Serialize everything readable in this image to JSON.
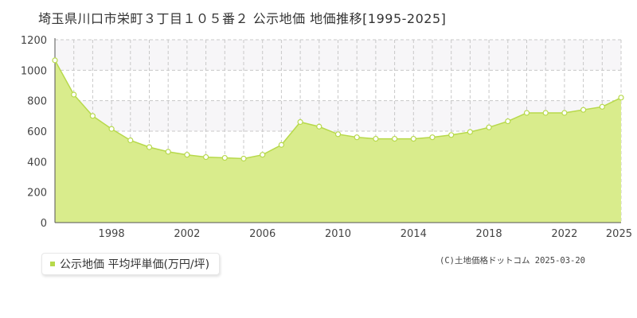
{
  "colors": {
    "fill": "#d9ec8c",
    "line": "#b7d94b",
    "marker_fill": "#ffffff",
    "grid": "#c8c8c8",
    "band": "#f7f6f8"
  },
  "chart_data": {
    "type": "area",
    "title": "埼玉県川口市栄町３丁目１０５番２ 公示地価 地価推移[1995-2025]",
    "xlabel": "",
    "ylabel": "",
    "xlim": [
      1995,
      2025
    ],
    "ylim": [
      0,
      1200
    ],
    "y_ticks": [
      0,
      200,
      400,
      600,
      800,
      1000,
      1200
    ],
    "x_tick_labels": [
      "1998",
      "2002",
      "2006",
      "2010",
      "2014",
      "2018",
      "2022",
      "2025"
    ],
    "grid": true,
    "legend_position": "bottom-left",
    "series": [
      {
        "name": "公示地価 平均坪単価(万円/坪)",
        "x": [
          1995,
          1996,
          1997,
          1998,
          1999,
          2000,
          2001,
          2002,
          2003,
          2004,
          2005,
          2006,
          2007,
          2008,
          2009,
          2010,
          2011,
          2012,
          2013,
          2014,
          2015,
          2016,
          2017,
          2018,
          2019,
          2020,
          2021,
          2022,
          2023,
          2024,
          2025
        ],
        "values": [
          1065,
          840,
          700,
          615,
          540,
          495,
          465,
          445,
          430,
          425,
          420,
          445,
          510,
          660,
          630,
          580,
          560,
          550,
          550,
          550,
          560,
          575,
          595,
          625,
          665,
          720,
          720,
          720,
          740,
          760,
          820
        ]
      }
    ]
  },
  "legend": {
    "label": "公示地価 平均坪単価(万円/坪)"
  },
  "credit": "(C)土地価格ドットコム 2025-03-20"
}
